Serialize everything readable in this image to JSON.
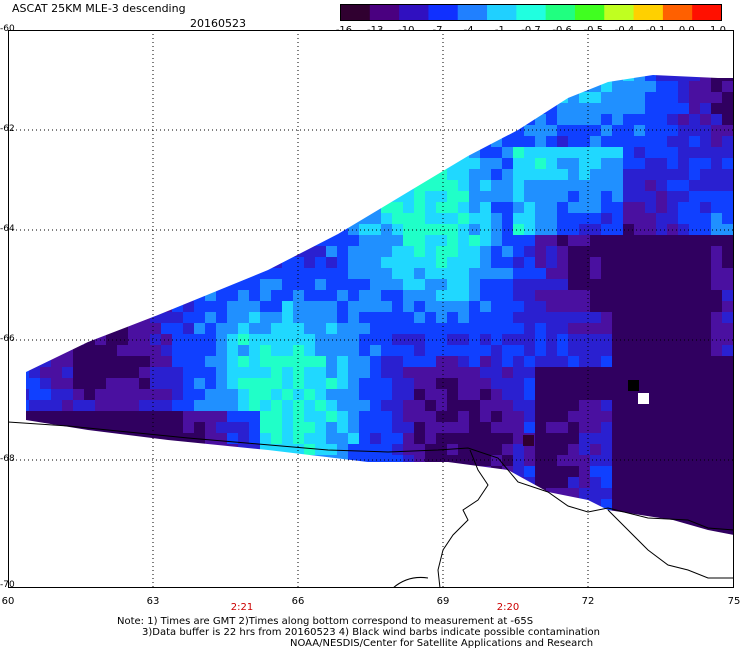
{
  "title": "ASCAT 25KM MLE-3 descending",
  "date": "20160523",
  "colorbar": {
    "labels": [
      "-16",
      "-13",
      "-10",
      "-7",
      "-4",
      "-1",
      "-0.7",
      "-0.6",
      "-0.5",
      "-0.4",
      "-0.1",
      "0.0",
      "1.0"
    ],
    "colors": [
      "#300030",
      "#4a0080",
      "#3010c0",
      "#1030ff",
      "#2080ff",
      "#20d0ff",
      "#20ffe0",
      "#20ff80",
      "#40ff20",
      "#c0ff20",
      "#ffd000",
      "#ff6000",
      "#ff1000"
    ]
  },
  "axes": {
    "lat_labels": [
      "-60",
      "-62",
      "-64",
      "-66",
      "-68",
      "-70"
    ],
    "lon_labels": [
      "60",
      "63",
      "66",
      "69",
      "72",
      "75"
    ],
    "pass_times": [
      "2:21",
      "2:20"
    ]
  },
  "notes": [
    "Note: 1) Times are GMT 2)Times along bottom correspond to measurement at -65S",
    "3)Data buffer is 22 hrs from 20160523 4) Black wind barbs indicate possible contamination",
    "NOAA/NESDIS/Center for Satellite Applications and Research"
  ]
}
